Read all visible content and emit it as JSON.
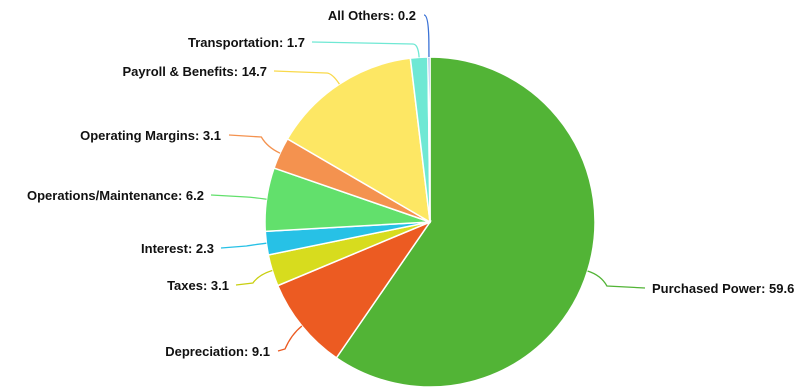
{
  "chart_data": {
    "type": "pie",
    "title": "",
    "legend": "none",
    "start_angle_deg": 0,
    "direction": "clockwise",
    "slices": [
      {
        "label": "Purchased Power",
        "value": 59.6,
        "color": "#52b436",
        "leader_color": "#52b436",
        "text": "Purchased Power: 59.6"
      },
      {
        "label": "Depreciation",
        "value": 9.1,
        "color": "#ec5b22",
        "leader_color": "#ec5b22",
        "text": "Depreciation: 9.1"
      },
      {
        "label": "Taxes",
        "value": 3.1,
        "color": "#d7dc1e",
        "leader_color": "#c9cf10",
        "text": "Taxes: 3.1"
      },
      {
        "label": "Interest",
        "value": 2.3,
        "color": "#27c1e6",
        "leader_color": "#27c1e6",
        "text": "Interest: 2.3"
      },
      {
        "label": "Operations/Maintenance",
        "value": 6.2,
        "color": "#62e06c",
        "leader_color": "#62e06c",
        "text": "Operations/Maintenance: 6.2"
      },
      {
        "label": "Operating Margins",
        "value": 3.1,
        "color": "#f4924f",
        "leader_color": "#f4924f",
        "text": "Operating Margins: 3.1"
      },
      {
        "label": "Payroll & Benefits",
        "value": 14.7,
        "color": "#fde764",
        "leader_color": "#f9d94a",
        "text": "Payroll & Benefits: 14.7"
      },
      {
        "label": "Transportation",
        "value": 1.7,
        "color": "#6fe8d4",
        "leader_color": "#6fe8d4",
        "text": "Transportation: 1.7"
      },
      {
        "label": "All Others",
        "value": 0.2,
        "color": "#3a72d6",
        "leader_color": "#3a72d6",
        "text": "All Others: 0.2"
      }
    ]
  }
}
